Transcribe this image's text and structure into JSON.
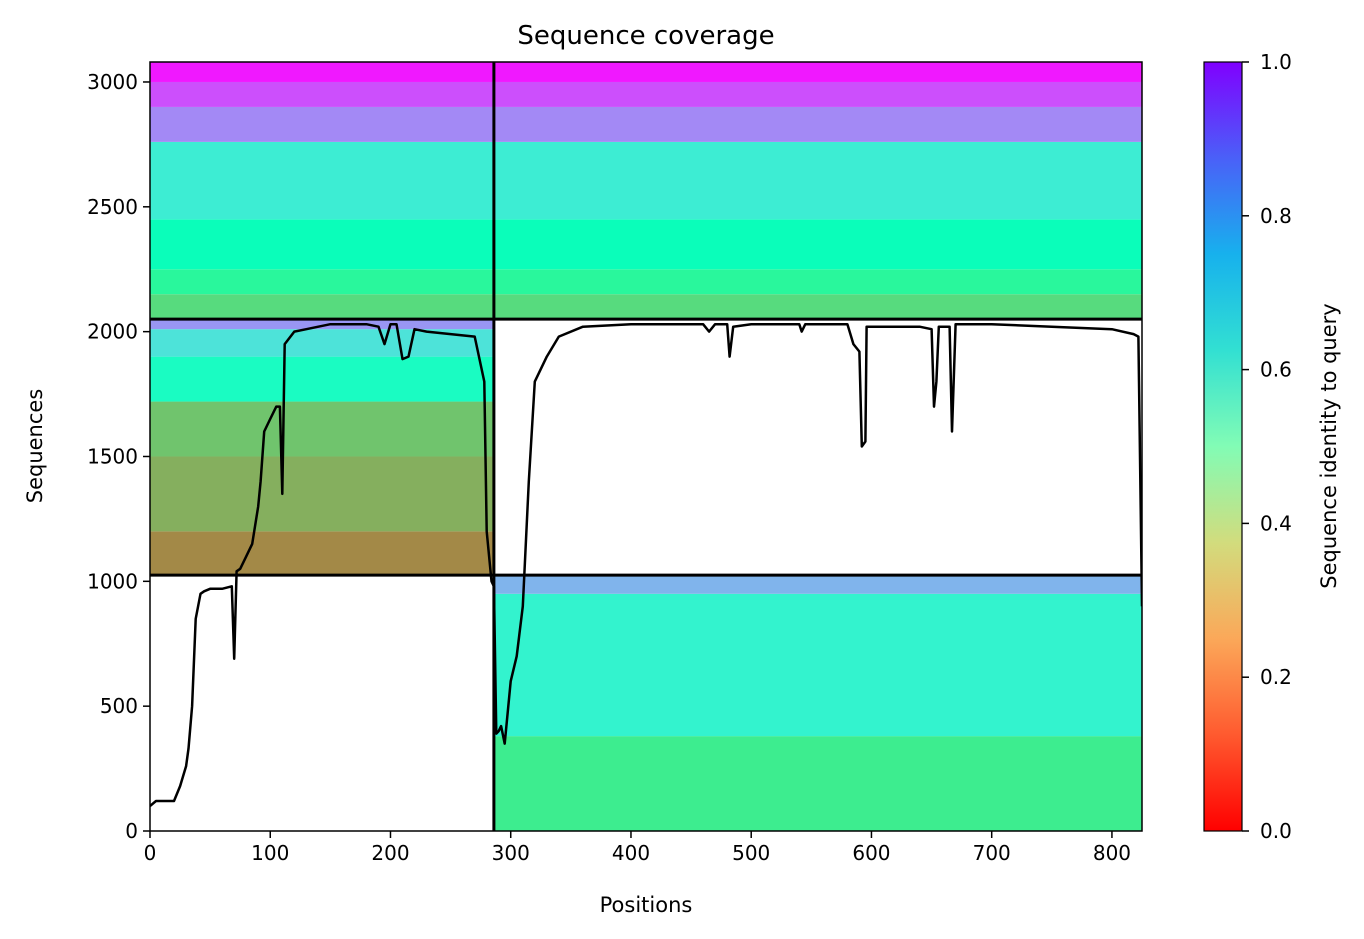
{
  "chart_data": {
    "type": "heatmap",
    "title": "Sequence coverage",
    "xlabel": "Positions",
    "ylabel": "Sequences",
    "xlim": [
      0,
      825
    ],
    "ylim": [
      0,
      3080
    ],
    "xticks": [
      "0",
      "100",
      "200",
      "300",
      "400",
      "500",
      "600",
      "700",
      "800"
    ],
    "yticks": [
      "0",
      "500",
      "1000",
      "1500",
      "2000",
      "2500",
      "3000"
    ],
    "colorbar": {
      "label": "Sequence identity to query",
      "range": [
        0,
        1
      ],
      "ticks": [
        "0.0",
        "0.2",
        "0.4",
        "0.6",
        "0.8",
        "1.0"
      ],
      "colormap": "rainbow_r"
    },
    "chain_boundaries_x": [
      286
    ],
    "block_boundaries_y": [
      1025,
      2050
    ],
    "blocks": [
      {
        "x_start": 286,
        "x_end": 825,
        "y_start": 0,
        "y_end": 1025,
        "bands": [
          {
            "y0": 0,
            "y1": 380,
            "identity": 0.38
          },
          {
            "y0": 380,
            "y1": 950,
            "identity": 0.6
          },
          {
            "y0": 950,
            "y1": 1025,
            "identity": 0.75
          }
        ]
      },
      {
        "x_start": 0,
        "x_end": 286,
        "y_start": 1025,
        "y_end": 2050,
        "bands": [
          {
            "y0": 1025,
            "y1": 1200,
            "identity": 0.18
          },
          {
            "y0": 1200,
            "y1": 1500,
            "identity": 0.24
          },
          {
            "y0": 1500,
            "y1": 1720,
            "identity": 0.28
          },
          {
            "y0": 1720,
            "y1": 1900,
            "identity": 0.55
          },
          {
            "y0": 1900,
            "y1": 2010,
            "identity": 0.65
          },
          {
            "y0": 2010,
            "y1": 2050,
            "identity": 0.8
          }
        ]
      },
      {
        "x_start": 0,
        "x_end": 825,
        "y_start": 2050,
        "y_end": 3080,
        "bands": [
          {
            "y0": 2050,
            "y1": 2150,
            "identity": 0.33
          },
          {
            "y0": 2150,
            "y1": 2250,
            "identity": 0.42
          },
          {
            "y0": 2250,
            "y1": 2450,
            "identity": 0.52
          },
          {
            "y0": 2450,
            "y1": 2760,
            "identity": 0.62
          },
          {
            "y0": 2760,
            "y1": 2900,
            "identity": 0.82
          },
          {
            "y0": 2900,
            "y1": 3000,
            "identity": 0.9
          },
          {
            "y0": 3000,
            "y1": 3080,
            "identity": 0.97
          }
        ]
      }
    ],
    "coverage_line": {
      "x": [
        0,
        5,
        20,
        25,
        30,
        32,
        35,
        38,
        40,
        42,
        45,
        50,
        60,
        68,
        70,
        72,
        75,
        80,
        85,
        90,
        92,
        95,
        100,
        105,
        108,
        110,
        112,
        120,
        130,
        140,
        150,
        160,
        170,
        180,
        190,
        195,
        200,
        205,
        210,
        215,
        220,
        230,
        250,
        270,
        278,
        280,
        284,
        286,
        288,
        290,
        292,
        295,
        300,
        305,
        310,
        315,
        320,
        330,
        340,
        360,
        400,
        460,
        465,
        470,
        480,
        482,
        485,
        500,
        540,
        542,
        545,
        580,
        585,
        590,
        592,
        595,
        596,
        600,
        640,
        650,
        652,
        654,
        656,
        660,
        665,
        667,
        670,
        700,
        750,
        800,
        818,
        822,
        825
      ],
      "y": [
        100,
        120,
        120,
        180,
        260,
        330,
        500,
        850,
        900,
        950,
        960,
        970,
        970,
        980,
        690,
        1040,
        1050,
        1100,
        1150,
        1300,
        1400,
        1600,
        1650,
        1700,
        1700,
        1350,
        1950,
        2000,
        2010,
        2020,
        2030,
        2030,
        2030,
        2030,
        2020,
        1950,
        2030,
        2030,
        1890,
        1900,
        2010,
        2000,
        1990,
        1980,
        1800,
        1200,
        1000,
        980,
        390,
        400,
        420,
        350,
        600,
        700,
        900,
        1400,
        1800,
        1900,
        1980,
        2020,
        2030,
        2030,
        2000,
        2030,
        2030,
        1900,
        2020,
        2030,
        2030,
        2000,
        2030,
        2030,
        1950,
        1920,
        1540,
        1560,
        2020,
        2020,
        2020,
        2010,
        1700,
        1800,
        2020,
        2020,
        2020,
        1600,
        2030,
        2030,
        2020,
        2010,
        1990,
        1980,
        900
      ]
    }
  }
}
